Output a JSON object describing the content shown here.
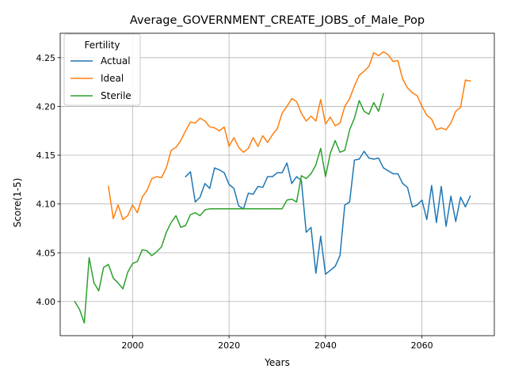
{
  "chart_data": {
    "type": "line",
    "title": "Average_GOVERNMENT_CREATE_JOBS_of_Male_Pop",
    "xlabel": "Years",
    "ylabel": "Score(1-5)",
    "xlim": [
      1985,
      2075
    ],
    "ylim": [
      3.965,
      4.275
    ],
    "xticks": [
      2000,
      2020,
      2040,
      2060
    ],
    "yticks": [
      4.0,
      4.05,
      4.1,
      4.15,
      4.2,
      4.25
    ],
    "xtick_labels": [
      "2000",
      "2020",
      "2040",
      "2060"
    ],
    "ytick_labels": [
      "4.00",
      "4.05",
      "4.10",
      "4.15",
      "4.20",
      "4.25"
    ],
    "grid": true,
    "legend": {
      "title": "Fertility",
      "position": "upper-left"
    },
    "series": [
      {
        "name": "Actual",
        "color": "#1f77b4",
        "x": [
          2011,
          2012,
          2013,
          2014,
          2015,
          2016,
          2017,
          2018,
          2019,
          2020,
          2021,
          2022,
          2023,
          2024,
          2025,
          2026,
          2027,
          2028,
          2029,
          2030,
          2031,
          2032,
          2033,
          2034,
          2035,
          2036,
          2037,
          2038,
          2039,
          2040,
          2041,
          2042,
          2043,
          2044,
          2045,
          2046,
          2047,
          2048,
          2049,
          2050,
          2051,
          2052,
          2053,
          2054,
          2055,
          2056,
          2057,
          2058,
          2059,
          2060,
          2061,
          2062,
          2063,
          2064,
          2065,
          2066,
          2067,
          2068,
          2069,
          2070
        ],
        "y": [
          4.128,
          4.133,
          4.102,
          4.107,
          4.121,
          4.116,
          4.137,
          4.135,
          4.132,
          4.12,
          4.116,
          4.098,
          4.095,
          4.111,
          4.11,
          4.118,
          4.117,
          4.128,
          4.128,
          4.132,
          4.132,
          4.142,
          4.121,
          4.128,
          4.124,
          4.071,
          4.076,
          4.029,
          4.067,
          4.028,
          4.032,
          4.036,
          4.047,
          4.099,
          4.102,
          4.145,
          4.146,
          4.154,
          4.147,
          4.146,
          4.147,
          4.137,
          4.134,
          4.131,
          4.131,
          4.121,
          4.117,
          4.097,
          4.099,
          4.104,
          4.084,
          4.119,
          4.081,
          4.118,
          4.077,
          4.108,
          4.082,
          4.107,
          4.097,
          4.108
        ]
      },
      {
        "name": "Ideal",
        "color": "#ff7f0e",
        "x": [
          1995,
          1996,
          1997,
          1998,
          1999,
          2000,
          2001,
          2002,
          2003,
          2004,
          2005,
          2006,
          2007,
          2008,
          2009,
          2010,
          2011,
          2012,
          2013,
          2014,
          2015,
          2016,
          2017,
          2018,
          2019,
          2020,
          2021,
          2022,
          2023,
          2024,
          2025,
          2026,
          2027,
          2028,
          2029,
          2030,
          2031,
          2032,
          2033,
          2034,
          2035,
          2036,
          2037,
          2038,
          2039,
          2040,
          2041,
          2042,
          2043,
          2044,
          2045,
          2046,
          2047,
          2048,
          2049,
          2050,
          2051,
          2052,
          2053,
          2054,
          2055,
          2056,
          2057,
          2058,
          2059,
          2060,
          2061,
          2062,
          2063,
          2064,
          2065,
          2066,
          2067,
          2068,
          2069,
          2070
        ],
        "y": [
          4.118,
          4.085,
          4.099,
          4.084,
          4.088,
          4.099,
          4.091,
          4.107,
          4.114,
          4.126,
          4.128,
          4.127,
          4.137,
          4.155,
          4.158,
          4.165,
          4.175,
          4.184,
          4.183,
          4.188,
          4.185,
          4.179,
          4.178,
          4.175,
          4.179,
          4.159,
          4.168,
          4.158,
          4.153,
          4.157,
          4.168,
          4.159,
          4.17,
          4.163,
          4.171,
          4.177,
          4.193,
          4.2,
          4.208,
          4.205,
          4.193,
          4.185,
          4.19,
          4.185,
          4.207,
          4.182,
          4.189,
          4.18,
          4.183,
          4.2,
          4.208,
          4.221,
          4.232,
          4.236,
          4.241,
          4.255,
          4.252,
          4.256,
          4.253,
          4.246,
          4.247,
          4.228,
          4.219,
          4.214,
          4.211,
          4.2,
          4.191,
          4.187,
          4.176,
          4.178,
          4.176,
          4.183,
          4.195,
          4.199,
          4.227,
          4.226
        ]
      },
      {
        "name": "Sterile",
        "color": "#2ca02c",
        "x": [
          1988,
          1989,
          1990,
          1991,
          1992,
          1993,
          1994,
          1995,
          1996,
          1997,
          1998,
          1999,
          2000,
          2001,
          2002,
          2003,
          2004,
          2005,
          2006,
          2007,
          2008,
          2009,
          2010,
          2011,
          2012,
          2013,
          2014,
          2015,
          2016,
          2017,
          2018,
          2019,
          2020,
          2021,
          2022,
          2023,
          2024,
          2025,
          2026,
          2027,
          2028,
          2029,
          2030,
          2031,
          2032,
          2033,
          2034,
          2035,
          2036,
          2037,
          2038,
          2039,
          2040,
          2041,
          2042,
          2043,
          2044,
          2045,
          2046,
          2047,
          2048,
          2049,
          2050,
          2051,
          2052
        ],
        "y": [
          4.0,
          3.992,
          3.978,
          4.045,
          4.019,
          4.011,
          4.035,
          4.038,
          4.024,
          4.019,
          4.013,
          4.03,
          4.039,
          4.041,
          4.053,
          4.052,
          4.047,
          4.051,
          4.056,
          4.071,
          4.081,
          4.088,
          4.076,
          4.078,
          4.089,
          4.091,
          4.088,
          4.094,
          4.095,
          4.095,
          4.095,
          4.095,
          4.095,
          4.095,
          4.095,
          4.095,
          4.095,
          4.095,
          4.095,
          4.095,
          4.095,
          4.095,
          4.095,
          4.095,
          4.104,
          4.105,
          4.102,
          4.129,
          4.126,
          4.131,
          4.14,
          4.157,
          4.128,
          4.152,
          4.165,
          4.153,
          4.155,
          4.176,
          4.188,
          4.206,
          4.195,
          4.192,
          4.204,
          4.195,
          4.213
        ]
      }
    ]
  }
}
